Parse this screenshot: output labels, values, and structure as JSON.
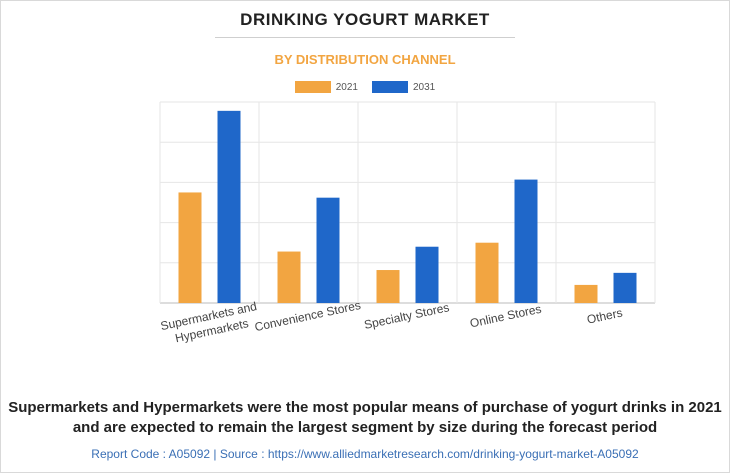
{
  "title": "DRINKING YOGURT MARKET",
  "subtitle": "BY DISTRIBUTION CHANNEL",
  "colors": {
    "y2021": "#f2a541",
    "y2031": "#1f67c9",
    "subtitle": "#f2a541",
    "footer": "#3a6fb5"
  },
  "legend": [
    {
      "label": "2021",
      "color": "#f2a541"
    },
    {
      "label": "2031",
      "color": "#1f67c9"
    }
  ],
  "chart_data": {
    "type": "bar",
    "categories": [
      "Supermarkets and Hypermarkets",
      "Convenience Stores",
      "Specialty Stores",
      "Online Stores",
      "Others"
    ],
    "series": [
      {
        "name": "2021",
        "values": [
          2.75,
          1.28,
          0.82,
          1.5,
          0.45
        ]
      },
      {
        "name": "2031",
        "values": [
          4.78,
          2.62,
          1.4,
          3.07,
          0.75
        ]
      }
    ],
    "ylim": [
      0,
      5
    ],
    "grid": true,
    "legend_position": "top-center",
    "title": "DRINKING YOGURT MARKET",
    "subtitle": "BY DISTRIBUTION CHANNEL",
    "xlabel": "",
    "ylabel": ""
  },
  "caption": "Supermarkets and Hypermarkets were the most popular means of purchase of yogurt drinks in 2021 and are expected to remain the largest segment by size during the forecast period",
  "footer": "Report Code : A05092  |  Source : https://www.alliedmarketresearch.com/drinking-yogurt-market-A05092"
}
